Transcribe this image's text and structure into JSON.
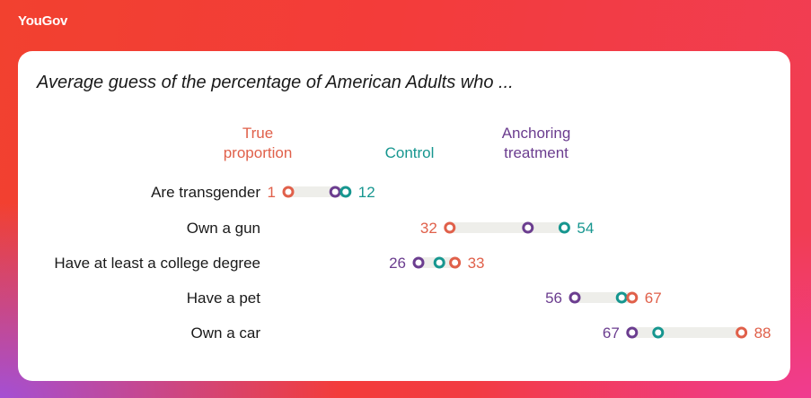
{
  "brand": {
    "logo": "YouGov"
  },
  "chart_data": {
    "type": "dumbbell",
    "title": "",
    "subtitle": "Average guess of the percentage of American Adults who ...",
    "legend": {
      "true_proportion": [
        "True",
        "proportion"
      ],
      "control": "Control",
      "anchoring_treatment": [
        "Anchoring",
        "treatment"
      ]
    },
    "colors": {
      "true": "#e0604a",
      "control": "#16968f",
      "anchor": "#6b3d8f",
      "track": "#eeeeea"
    },
    "rows": [
      {
        "label": "Are transgender",
        "true": 1,
        "control": 12,
        "anchoring": 10,
        "left_label": "1",
        "right_label": "12"
      },
      {
        "label": "Own a gun",
        "true": 32,
        "control": 54,
        "anchoring": 47,
        "left_label": "32",
        "right_label": "54"
      },
      {
        "label": "Have at least a college degree",
        "true": 33,
        "control": 30,
        "anchoring": 26,
        "left_label": "26",
        "right_label": "33"
      },
      {
        "label": "Have a pet",
        "true": 67,
        "control": 65,
        "anchoring": 56,
        "left_label": "56",
        "right_label": "67"
      },
      {
        "label": "Own a car",
        "true": 88,
        "control": 72,
        "anchoring": 67,
        "left_label": "67",
        "right_label": "88"
      }
    ]
  }
}
